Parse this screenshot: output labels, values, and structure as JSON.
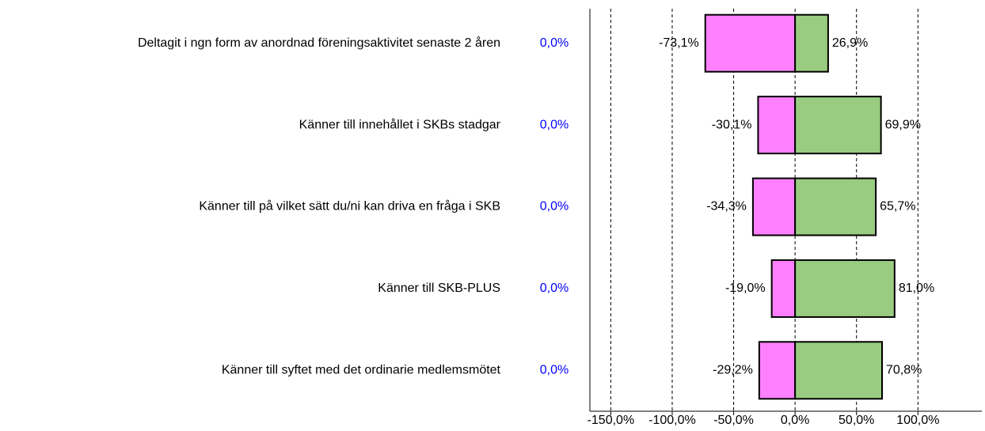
{
  "chart_data": {
    "type": "diverging-bar",
    "categories": [
      "Deltagit i ngn form av anordnad föreningsaktivitet  senaste 2 åren",
      "Känner till innehållet i SKBs stadgar",
      "Känner till på vilket sätt du/ni kan driva en fråga i SKB",
      "Känner till SKB-PLUS",
      "Känner till syftet med det ordinarie medlemsmötet"
    ],
    "side_values": [
      0,
      0,
      0,
      0,
      0
    ],
    "side_labels": [
      "0,0%",
      "0,0%",
      "0,0%",
      "0,0%",
      "0,0%"
    ],
    "side_color": "#0000ff",
    "series": [
      {
        "color": "#ff80ff",
        "values": [
          -73.1,
          -30.1,
          -34.3,
          -19.0,
          -29.2
        ],
        "value_labels": [
          "-73,1%",
          "-30,1%",
          "-34,3%",
          "-19,0%",
          "-29,2%"
        ]
      },
      {
        "color": "#99cc80",
        "values": [
          26.9,
          69.9,
          65.7,
          81.0,
          70.8
        ],
        "value_labels": [
          "26,9%",
          "69,9%",
          "65,7%",
          "81,0%",
          "70,8%"
        ]
      }
    ],
    "xlim": [
      -167,
      152
    ],
    "xticks": [
      {
        "value": -150,
        "label": "-150,0%"
      },
      {
        "value": -100,
        "label": "-100,0%"
      },
      {
        "value": -50,
        "label": "-50,0%"
      },
      {
        "value": 0,
        "label": "0,0%"
      },
      {
        "value": 50,
        "label": "50,0%"
      },
      {
        "value": 100,
        "label": "100,0%"
      }
    ],
    "grid": true
  }
}
